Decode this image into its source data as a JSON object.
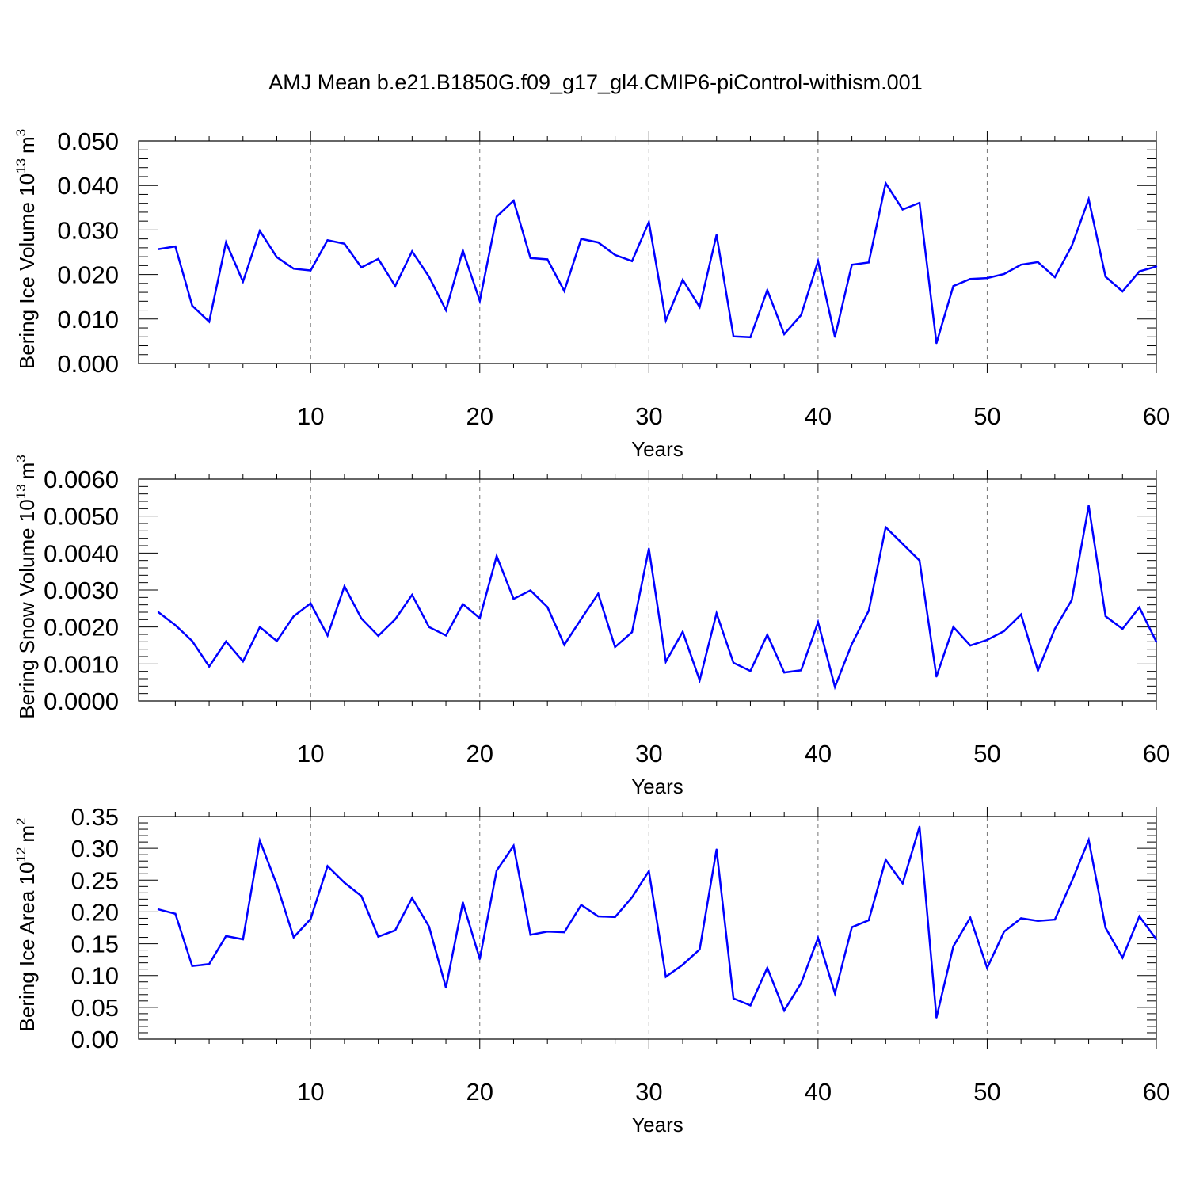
{
  "title": "AMJ Mean b.e21.B1850G.f09_g17_gl4.CMIP6-piControl-withism.001",
  "chart_data": [
    {
      "type": "line",
      "ylabel_main": "Bering Ice Volume 10",
      "ylabel_exp": "13",
      "ylabel_unit": "m",
      "ylabel_unit_exp": "3",
      "xlabel": "Years",
      "xlim": [
        1,
        60
      ],
      "ylim": [
        0,
        0.05
      ],
      "yticks": [
        0,
        0.01,
        0.02,
        0.03,
        0.04,
        0.05
      ],
      "ytick_labels": [
        "0.000",
        "0.010",
        "0.020",
        "0.030",
        "0.040",
        "0.050"
      ],
      "xticks": [
        10,
        20,
        30,
        40,
        50,
        60
      ],
      "xtick_labels": [
        "10",
        "20",
        "30",
        "40",
        "50",
        "60"
      ],
      "grid_x": [
        10,
        20,
        30,
        40,
        50
      ],
      "color": "#0000ff",
      "values": [
        0.0257,
        0.0263,
        0.013,
        0.0094,
        0.0272,
        0.0184,
        0.0298,
        0.0239,
        0.0213,
        0.0209,
        0.0277,
        0.0269,
        0.0216,
        0.0235,
        0.0174,
        0.0252,
        0.0195,
        0.012,
        0.0254,
        0.0141,
        0.033,
        0.0366,
        0.0237,
        0.0234,
        0.0163,
        0.028,
        0.0272,
        0.0244,
        0.023,
        0.0318,
        0.0097,
        0.0188,
        0.0127,
        0.0289,
        0.0061,
        0.0059,
        0.0165,
        0.0066,
        0.0109,
        0.023,
        0.006,
        0.0222,
        0.0227,
        0.0405,
        0.0346,
        0.0361,
        0.0046,
        0.0174,
        0.019,
        0.0192,
        0.0201,
        0.0222,
        0.0228,
        0.0194,
        0.0264,
        0.0369,
        0.0195,
        0.0162,
        0.0207,
        0.0218
      ]
    },
    {
      "type": "line",
      "ylabel_main": "Bering Snow Volume 10",
      "ylabel_exp": "13",
      "ylabel_unit": "m",
      "ylabel_unit_exp": "3",
      "xlabel": "Years",
      "xlim": [
        1,
        60
      ],
      "ylim": [
        0,
        0.006
      ],
      "yticks": [
        0,
        0.001,
        0.002,
        0.003,
        0.004,
        0.005,
        0.006
      ],
      "ytick_labels": [
        "0.0000",
        "0.0010",
        "0.0020",
        "0.0030",
        "0.0040",
        "0.0050",
        "0.0060"
      ],
      "xticks": [
        10,
        20,
        30,
        40,
        50,
        60
      ],
      "xtick_labels": [
        "10",
        "20",
        "30",
        "40",
        "50",
        "60"
      ],
      "grid_x": [
        10,
        20,
        30,
        40,
        50
      ],
      "color": "#0000ff",
      "values": [
        0.0024,
        0.00205,
        0.00162,
        0.00093,
        0.00161,
        0.00107,
        0.002,
        0.00162,
        0.00229,
        0.00264,
        0.00177,
        0.0031,
        0.00223,
        0.00176,
        0.00221,
        0.00287,
        0.002,
        0.00177,
        0.00262,
        0.00224,
        0.00392,
        0.00276,
        0.00299,
        0.00254,
        0.00152,
        0.00222,
        0.0029,
        0.00146,
        0.00186,
        0.00412,
        0.00106,
        0.00187,
        0.00056,
        0.00237,
        0.00103,
        0.00081,
        0.00179,
        0.00077,
        0.00083,
        0.00213,
        0.00038,
        0.00154,
        0.00244,
        0.0047,
        0.00425,
        0.0038,
        0.00066,
        0.002,
        0.0015,
        0.00165,
        0.00189,
        0.00234,
        0.00082,
        0.00195,
        0.00273,
        0.00528,
        0.00229,
        0.00195,
        0.00253,
        0.0016
      ]
    },
    {
      "type": "line",
      "ylabel_main": "Bering Ice Area 10",
      "ylabel_exp": "12",
      "ylabel_unit": "m",
      "ylabel_unit_exp": "2",
      "xlabel": "Years",
      "xlim": [
        1,
        60
      ],
      "ylim": [
        0,
        0.35
      ],
      "yticks": [
        0,
        0.05,
        0.1,
        0.15,
        0.2,
        0.25,
        0.3,
        0.35
      ],
      "ytick_labels": [
        "0.00",
        "0.05",
        "0.10",
        "0.15",
        "0.20",
        "0.25",
        "0.30",
        "0.35"
      ],
      "xticks": [
        10,
        20,
        30,
        40,
        50,
        60
      ],
      "xtick_labels": [
        "10",
        "20",
        "30",
        "40",
        "50",
        "60"
      ],
      "grid_x": [
        10,
        20,
        30,
        40,
        50
      ],
      "color": "#0000ff",
      "values": [
        0.204,
        0.197,
        0.115,
        0.118,
        0.162,
        0.157,
        0.312,
        0.243,
        0.16,
        0.189,
        0.272,
        0.246,
        0.225,
        0.161,
        0.171,
        0.222,
        0.177,
        0.081,
        0.215,
        0.126,
        0.265,
        0.304,
        0.164,
        0.169,
        0.168,
        0.211,
        0.193,
        0.192,
        0.223,
        0.264,
        0.098,
        0.117,
        0.141,
        0.298,
        0.064,
        0.053,
        0.112,
        0.045,
        0.088,
        0.159,
        0.072,
        0.176,
        0.187,
        0.282,
        0.245,
        0.334,
        0.034,
        0.146,
        0.191,
        0.112,
        0.169,
        0.19,
        0.186,
        0.188,
        0.248,
        0.313,
        0.175,
        0.128,
        0.193,
        0.157
      ]
    }
  ]
}
